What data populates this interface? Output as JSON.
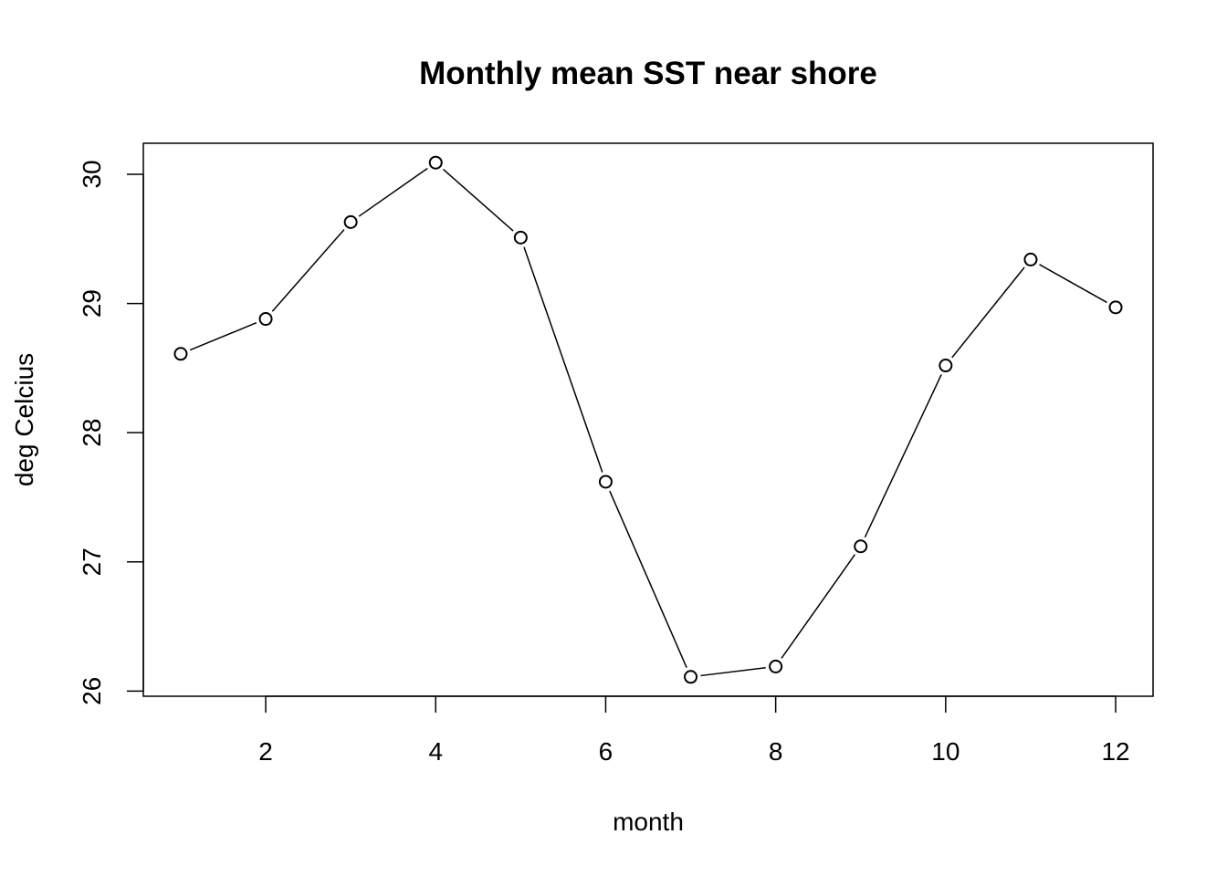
{
  "chart_data": {
    "type": "line",
    "title": "Monthly mean SST near shore",
    "xlabel": "month",
    "ylabel": "deg Celcius",
    "x": [
      1,
      2,
      3,
      4,
      5,
      6,
      7,
      8,
      9,
      10,
      11,
      12
    ],
    "series": [
      {
        "values": [
          28.61,
          28.88,
          29.63,
          30.09,
          29.51,
          27.62,
          26.11,
          26.19,
          27.12,
          28.52,
          29.34,
          28.97
        ]
      }
    ],
    "xlim": [
      0.56,
      12.44
    ],
    "ylim": [
      25.96,
      30.24
    ],
    "xticks": [
      2,
      4,
      6,
      8,
      10,
      12
    ],
    "yticks": [
      26,
      27,
      28,
      29,
      30
    ],
    "grid": false,
    "markers": "open-circle"
  }
}
